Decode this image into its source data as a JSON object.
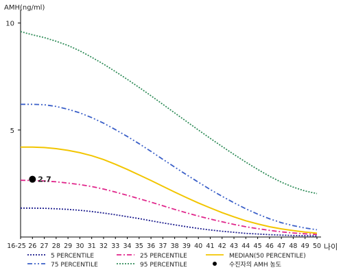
{
  "chart_data": {
    "type": "line",
    "ylabel": "AMH(ng/ml)",
    "xlabel": "나이",
    "x": [
      "16-25",
      "26",
      "27",
      "28",
      "29",
      "30",
      "31",
      "32",
      "33",
      "34",
      "35",
      "36",
      "37",
      "38",
      "39",
      "40",
      "41",
      "42",
      "43",
      "44",
      "45",
      "46",
      "47",
      "48",
      "49",
      "50"
    ],
    "ylim": [
      0,
      10.5
    ],
    "yticks": [
      5,
      10
    ],
    "series": [
      {
        "name": "5 PERCENTILE",
        "color": "#1a1a8c",
        "dash": "dot",
        "values": [
          1.35,
          1.35,
          1.34,
          1.32,
          1.29,
          1.25,
          1.19,
          1.12,
          1.04,
          0.95,
          0.86,
          0.76,
          0.66,
          0.57,
          0.48,
          0.4,
          0.33,
          0.27,
          0.22,
          0.17,
          0.14,
          0.11,
          0.09,
          0.07,
          0.06,
          0.05
        ]
      },
      {
        "name": "25 PERCENTILE",
        "color": "#e0248a",
        "dash": "dashdot",
        "values": [
          2.65,
          2.64,
          2.62,
          2.58,
          2.52,
          2.45,
          2.36,
          2.24,
          2.1,
          1.95,
          1.79,
          1.63,
          1.46,
          1.29,
          1.13,
          0.98,
          0.84,
          0.71,
          0.59,
          0.48,
          0.39,
          0.31,
          0.24,
          0.19,
          0.15,
          0.12
        ]
      },
      {
        "name": "MEDIAN(50 PERCENTILE)",
        "color": "#f2c500",
        "dash": "solid",
        "values": [
          4.2,
          4.2,
          4.18,
          4.13,
          4.05,
          3.94,
          3.8,
          3.62,
          3.4,
          3.16,
          2.9,
          2.64,
          2.37,
          2.1,
          1.84,
          1.59,
          1.36,
          1.14,
          0.94,
          0.76,
          0.61,
          0.48,
          0.38,
          0.3,
          0.23,
          0.18
        ]
      },
      {
        "name": "75 PERCENTILE",
        "color": "#3a5fc8",
        "dash": "dashdotdot",
        "values": [
          6.2,
          6.2,
          6.18,
          6.1,
          5.97,
          5.8,
          5.58,
          5.32,
          5.02,
          4.7,
          4.36,
          4.0,
          3.63,
          3.27,
          2.91,
          2.56,
          2.22,
          1.9,
          1.6,
          1.32,
          1.07,
          0.85,
          0.67,
          0.53,
          0.42,
          0.34
        ]
      },
      {
        "name": "95 PERCENTILE",
        "color": "#2e8b57",
        "dash": "dot",
        "values": [
          9.6,
          9.45,
          9.32,
          9.15,
          8.95,
          8.7,
          8.4,
          8.08,
          7.73,
          7.37,
          6.99,
          6.6,
          6.2,
          5.8,
          5.4,
          5.0,
          4.61,
          4.23,
          3.86,
          3.5,
          3.16,
          2.84,
          2.56,
          2.33,
          2.15,
          2.03
        ]
      }
    ],
    "marker": {
      "label": "수진자의 AMH 농도",
      "x": "26",
      "y": 2.7,
      "value_label": "2.7",
      "color": "#000000"
    },
    "legend": {
      "placement": "bottom",
      "order": [
        "5 PERCENTILE",
        "25 PERCENTILE",
        "MEDIAN(50 PERCENTILE)",
        "75 PERCENTILE",
        "95 PERCENTILE",
        "수진자의 AMH 농도"
      ]
    }
  }
}
